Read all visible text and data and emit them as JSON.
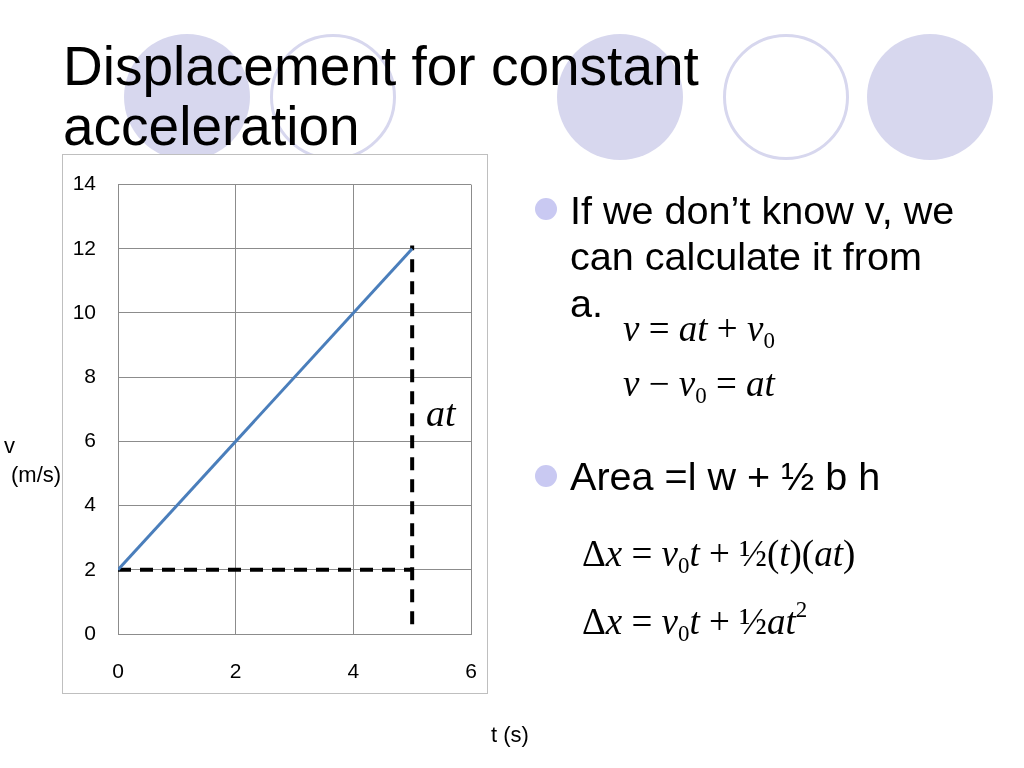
{
  "chart_data": {
    "type": "line",
    "title": "Displacement for constant acceleration",
    "xlabel": "t (s)",
    "ylabel": "v (m/s)",
    "x": [
      0,
      5
    ],
    "series": [
      {
        "type": "line",
        "color": "#4a7ebb",
        "values": [
          2,
          12
        ]
      },
      {
        "type": "line",
        "color": "#000000",
        "values": [
          2,
          2
        ],
        "line_style": "dashed"
      },
      {
        "type": "line",
        "color": "#000000",
        "x": [
          5,
          5
        ],
        "values": [
          0.3,
          12.1
        ],
        "line_style": "dashed"
      }
    ],
    "xlim": [
      0,
      6
    ],
    "xticks": [
      0,
      2,
      4,
      6
    ],
    "ylim": [
      0,
      14
    ],
    "yticks": [
      0,
      2,
      4,
      6,
      8,
      10,
      12,
      14
    ],
    "grid": true,
    "marker": "none",
    "annotations": [
      "at",
      "If we don’t know v, we can calculate it from a.",
      "v = at + v$_{0}$",
      "v − v$_{0}$ = at",
      "Area =l w + ½ b h",
      "Δx = v$_{0}$t + ½(t)(at)",
      "Δx = v$_{0}$t + ½at$^{2}$"
    ]
  }
}
